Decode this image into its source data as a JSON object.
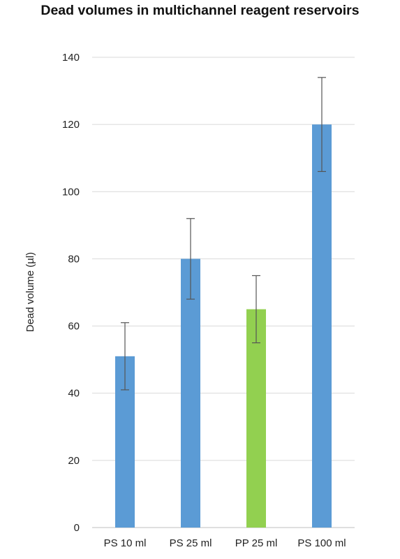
{
  "chart_data": {
    "type": "bar",
    "title": "Dead volumes in multichannel reagent reservoirs",
    "xlabel": "",
    "ylabel": "Dead volume (µl)",
    "categories": [
      "PS 10 ml",
      "PS 25 ml",
      "PP 25 ml",
      "PS 100 ml"
    ],
    "values": [
      51,
      80,
      65,
      120
    ],
    "error_low": [
      41,
      68,
      55,
      106
    ],
    "error_high": [
      61,
      92,
      75,
      134
    ],
    "bar_colors": [
      "#5b9bd5",
      "#5b9bd5",
      "#92d050",
      "#5b9bd5"
    ],
    "ylim": [
      0,
      140
    ],
    "yticks": [
      0,
      20,
      40,
      60,
      80,
      100,
      120,
      140
    ],
    "grid": true,
    "legend": "none"
  }
}
